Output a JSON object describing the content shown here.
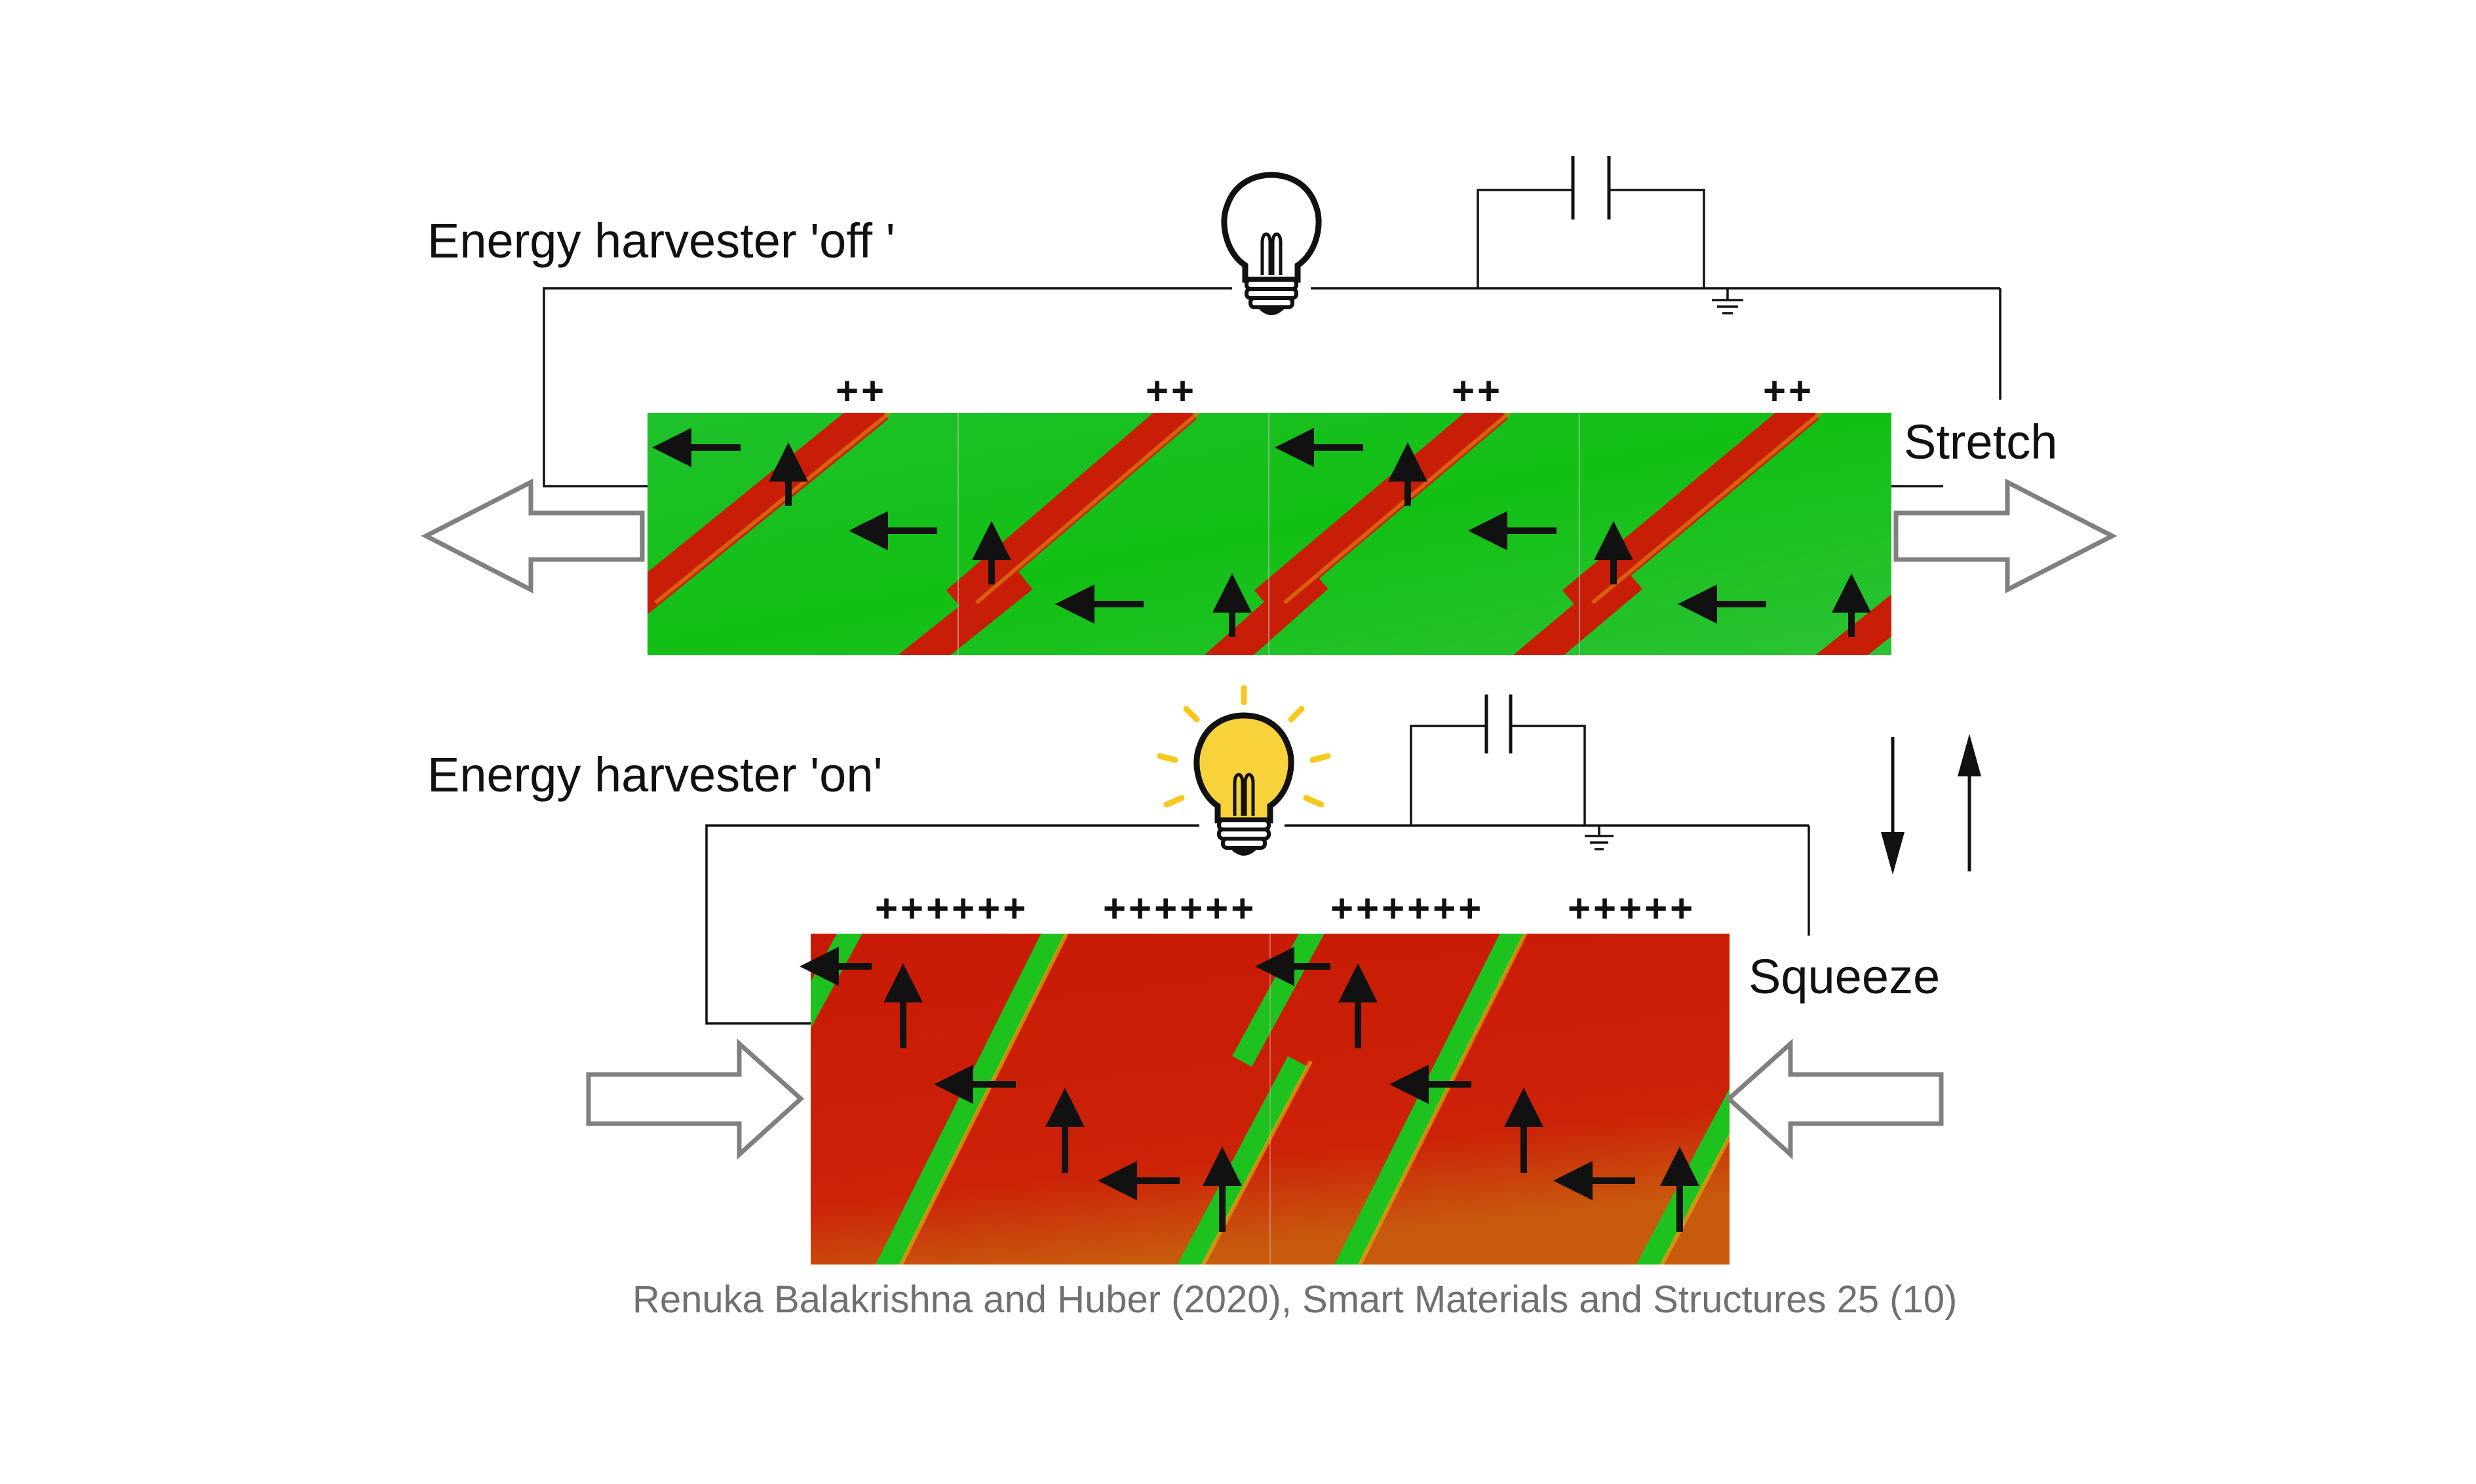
{
  "panel_off": {
    "title": "Energy harvester 'off '",
    "action": "Stretch",
    "charges": [
      "++",
      "++",
      "++",
      "++"
    ],
    "region_color": "#18c21e",
    "stripe_color": "#cc1e08",
    "bulb_icon": "lightbulb-off-icon"
  },
  "panel_on": {
    "title": "Energy harvester 'on'",
    "action": "Squeeze",
    "charges": [
      "++++++",
      "++++++",
      "++++++",
      "+++++"
    ],
    "region_color": "#cc1e08",
    "stripe_color": "#18c21e",
    "bulb_icon": "lightbulb-on-icon",
    "bulb_color": "#f8d23a"
  },
  "citation": "Renuka Balakrishna and Huber (2020), Smart Materials and Structures 25 (10)",
  "icons": [
    "capacitor-icon",
    "ground-icon",
    "polarization-arrow-icon",
    "load-arrow-icon",
    "cycle-arrows-icon"
  ]
}
